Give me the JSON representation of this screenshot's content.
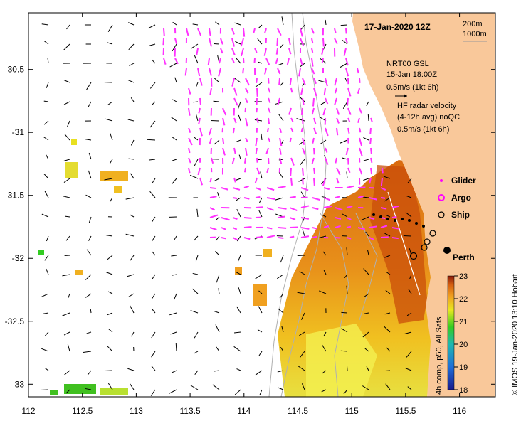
{
  "map": {
    "title": "17-Jan-2020 12Z",
    "scale": {
      "depth_a": "200m",
      "depth_b": "1000m"
    },
    "gsl": {
      "line1": "NRT00 GSL",
      "line2": "15-Jan 18:00Z",
      "line3": "0.5m/s (1kt 6h)"
    },
    "radar": {
      "line1": "HF radar velocity",
      "line2": "(4-12h avg) noQC",
      "line3": "0.5m/s (1kt 6h)"
    },
    "legend": {
      "glider": "Glider",
      "argo": "Argo",
      "ship": "Ship"
    },
    "place": "Perth",
    "colorbar": {
      "title": "4h comp, p50, All Sats",
      "ticks": [
        "23",
        "22",
        "21",
        "20",
        "19",
        "18"
      ],
      "min": 18,
      "max": 23
    },
    "credit": "© IMOS 19-Jan-2020 13:10 Hobart",
    "xaxis": {
      "ticks": [
        "112",
        "112.5",
        "113",
        "113.5",
        "114",
        "114.5",
        "115",
        "115.5",
        "116"
      ],
      "min": 112,
      "max": 116.333
    },
    "yaxis": {
      "ticks": [
        "-30.5",
        "-31",
        "-31.5",
        "-32",
        "-32.5",
        "-33"
      ],
      "min": -33.1,
      "max": -30.05
    }
  },
  "colors": {
    "land": "#f9c89a",
    "radar_vectors": "#ff33ff",
    "glider_track": "#ff00ff",
    "ship": "#000000",
    "bathymetry": "#b0b0b0"
  }
}
